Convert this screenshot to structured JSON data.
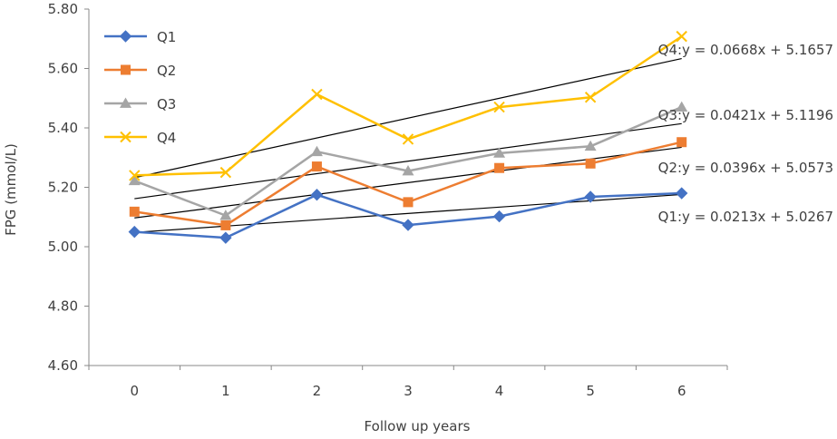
{
  "chart_data": {
    "type": "line",
    "title": "",
    "xlabel": "Follow up years",
    "ylabel": "FPG (mmol/L)",
    "x": [
      0,
      1,
      2,
      3,
      4,
      5,
      6
    ],
    "xlim": [
      -0.5,
      6.5
    ],
    "ylim": [
      4.6,
      5.8
    ],
    "yticks": [
      "4.60",
      "4.80",
      "5.00",
      "5.20",
      "5.40",
      "5.60",
      "5.80"
    ],
    "xticks": [
      "0",
      "1",
      "2",
      "3",
      "4",
      "5",
      "6"
    ],
    "grid": false,
    "legend_position": "top-left",
    "series": [
      {
        "name": "Q1",
        "color": "#4472C4",
        "marker": "diamond",
        "values": [
          5.05,
          5.03,
          5.175,
          5.073,
          5.102,
          5.168,
          5.18
        ]
      },
      {
        "name": "Q2",
        "color": "#ED7D31",
        "marker": "square",
        "values": [
          5.118,
          5.072,
          5.27,
          5.15,
          5.265,
          5.28,
          5.352
        ]
      },
      {
        "name": "Q3",
        "color": "#A5A5A5",
        "marker": "triangle",
        "values": [
          5.222,
          5.105,
          5.32,
          5.255,
          5.315,
          5.338,
          5.47
        ]
      },
      {
        "name": "Q4",
        "color": "#FFC000",
        "marker": "x",
        "values": [
          5.24,
          5.25,
          5.513,
          5.362,
          5.47,
          5.503,
          5.708
        ]
      }
    ],
    "trendlines": [
      {
        "series": "Q1",
        "slope": 0.0213,
        "intercept": 5.0267,
        "label": "Q1:y = 0.0213x + 5.0267"
      },
      {
        "series": "Q2",
        "slope": 0.0396,
        "intercept": 5.0573,
        "label": "Q2:y = 0.0396x + 5.0573"
      },
      {
        "series": "Q3",
        "slope": 0.0421,
        "intercept": 5.1196,
        "label": "Q3:y = 0.0421x + 5.1196"
      },
      {
        "series": "Q4",
        "slope": 0.0668,
        "intercept": 5.1657,
        "label": "Q4:y = 0.0668x + 5.1657"
      }
    ],
    "trendline_color": "#000000"
  }
}
